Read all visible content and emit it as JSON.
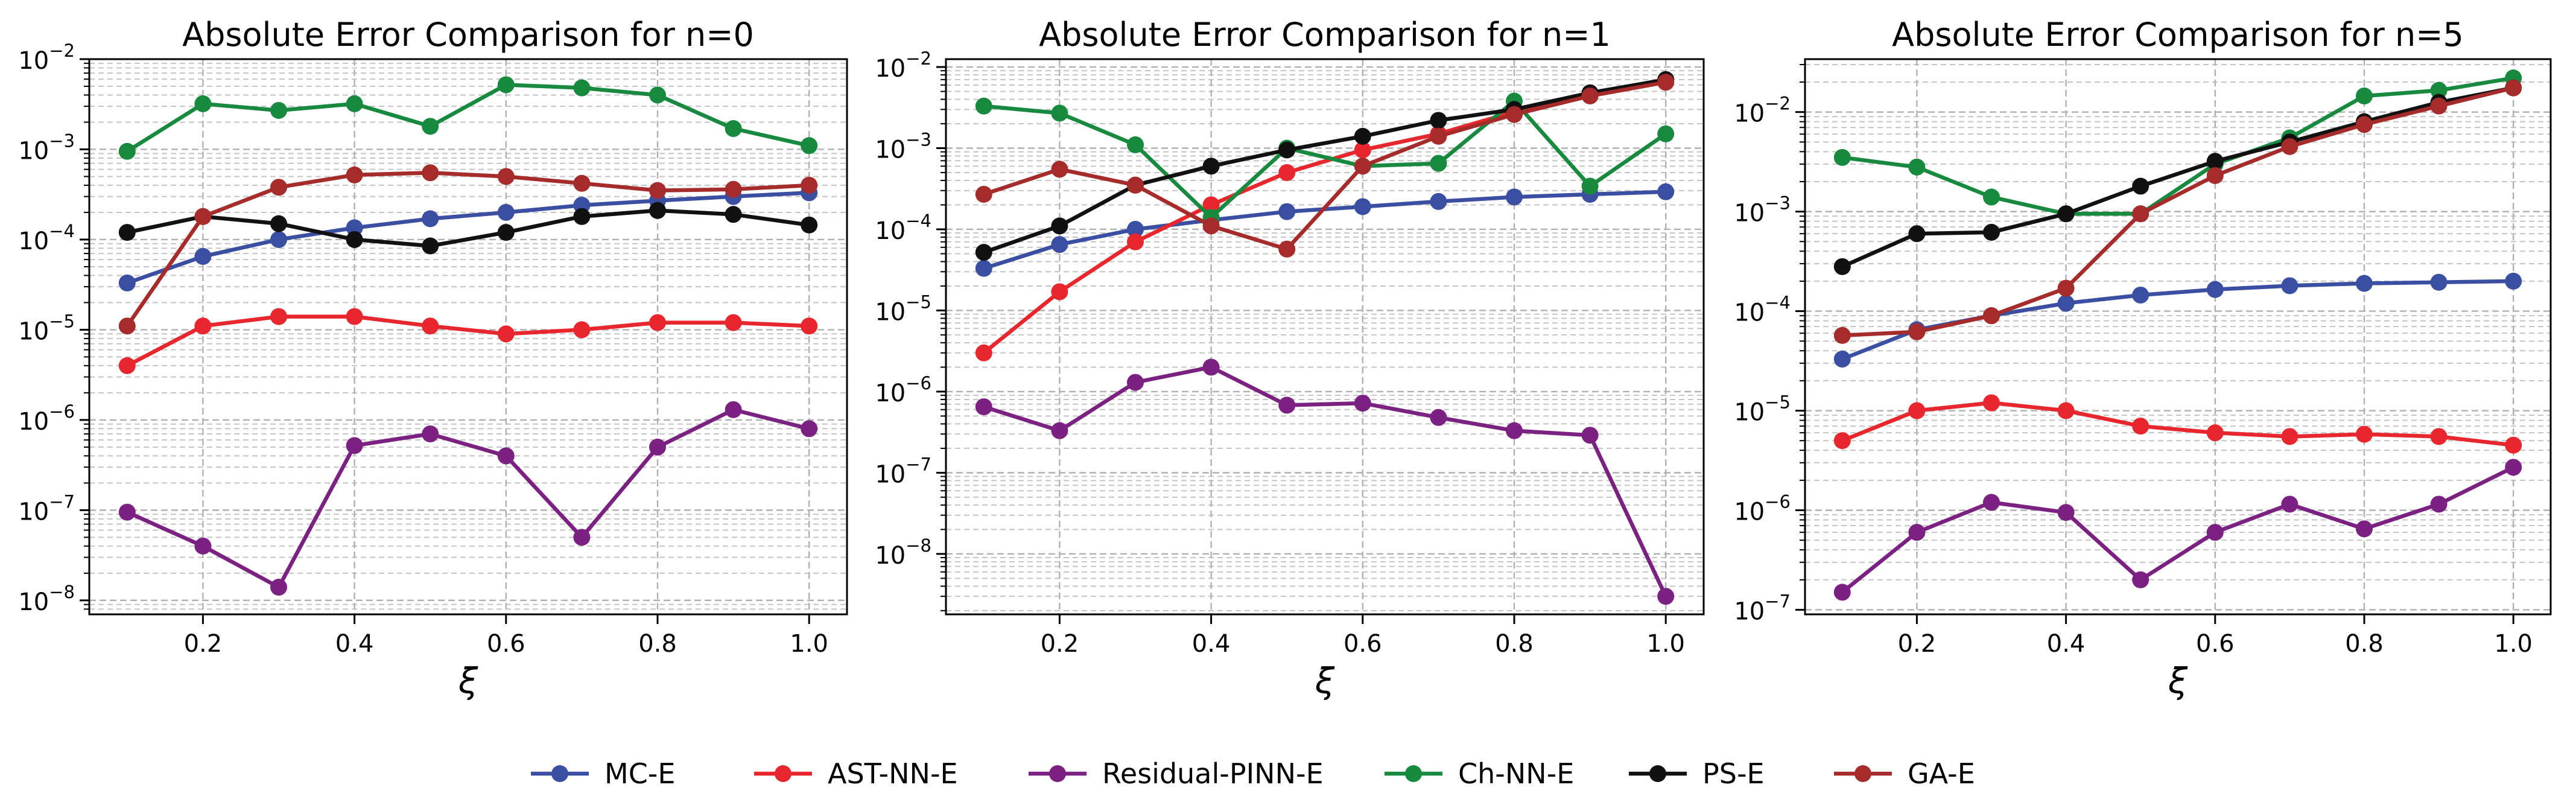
{
  "figure": {
    "legend_position": "bottom-center",
    "grid": true
  },
  "series_styles": [
    {
      "name": "MC-E",
      "color": "#3a4ea2"
    },
    {
      "name": "AST-NN-E",
      "color": "#e8262e"
    },
    {
      "name": "Residual-PINN-E",
      "color": "#7b2181"
    },
    {
      "name": "Ch-NN-E",
      "color": "#178a3f"
    },
    {
      "name": "PS-E",
      "color": "#111111"
    },
    {
      "name": "GA-E",
      "color": "#a62b2b"
    }
  ],
  "chart_data": [
    {
      "type": "line",
      "title": "Absolute Error Comparison for n=0",
      "xlabel": "ξ",
      "ylabel": "",
      "yscale": "log",
      "x": [
        0.1,
        0.2,
        0.3,
        0.4,
        0.5,
        0.6,
        0.7,
        0.8,
        0.9,
        1.0
      ],
      "xlim": [
        0.05,
        1.05
      ],
      "ylim": [
        7e-09,
        0.01
      ],
      "xticks": [
        "0.2",
        "0.4",
        "0.6",
        "0.8",
        "1.0"
      ],
      "yticks": [
        "10",
        "10",
        "10",
        "10",
        "10",
        "10",
        "10"
      ],
      "ytick_exponents": [
        "-8",
        "-7",
        "-6",
        "-5",
        "-4",
        "-3",
        "-2"
      ],
      "series": [
        {
          "name": "MC-E",
          "values": [
            3.3e-05,
            6.5e-05,
            0.0001,
            0.000135,
            0.00017,
            0.0002,
            0.00024,
            0.00027,
            0.0003,
            0.00033
          ]
        },
        {
          "name": "AST-NN-E",
          "values": [
            4e-06,
            1.1e-05,
            1.4e-05,
            1.4e-05,
            1.1e-05,
            9e-06,
            1e-05,
            1.2e-05,
            1.2e-05,
            1.1e-05
          ]
        },
        {
          "name": "Residual-PINN-E",
          "values": [
            9.5e-08,
            4e-08,
            1.4e-08,
            5.2e-07,
            7e-07,
            4e-07,
            5e-08,
            5e-07,
            1.3e-06,
            8e-07
          ]
        },
        {
          "name": "Ch-NN-E",
          "values": [
            0.00095,
            0.0032,
            0.0027,
            0.0032,
            0.0018,
            0.0052,
            0.0048,
            0.004,
            0.0017,
            0.0011
          ]
        },
        {
          "name": "PS-E",
          "values": [
            0.00012,
            0.00018,
            0.00015,
            0.0001,
            8.5e-05,
            0.00012,
            0.00018,
            0.00021,
            0.00019,
            0.000145
          ]
        },
        {
          "name": "GA-E",
          "values": [
            1.1e-05,
            0.00018,
            0.00038,
            0.00052,
            0.00055,
            0.0005,
            0.00042,
            0.00035,
            0.00036,
            0.0004
          ]
        }
      ]
    },
    {
      "type": "line",
      "title": "Absolute Error Comparison for n=1",
      "xlabel": "ξ",
      "ylabel": "",
      "yscale": "log",
      "x": [
        0.1,
        0.2,
        0.3,
        0.4,
        0.5,
        0.6,
        0.7,
        0.8,
        0.9,
        1.0
      ],
      "xlim": [
        0.05,
        1.05
      ],
      "ylim": [
        1.8e-09,
        0.0125
      ],
      "xticks": [
        "0.2",
        "0.4",
        "0.6",
        "0.8",
        "1.0"
      ],
      "yticks": [
        "10",
        "10",
        "10",
        "10",
        "10",
        "10",
        "10"
      ],
      "ytick_exponents": [
        "-8",
        "-7",
        "-6",
        "-5",
        "-4",
        "-3",
        "-2"
      ],
      "series": [
        {
          "name": "MC-E",
          "values": [
            3.3e-05,
            6.5e-05,
            0.0001,
            0.00013,
            0.000165,
            0.00019,
            0.00022,
            0.00025,
            0.00027,
            0.00029
          ]
        },
        {
          "name": "AST-NN-E",
          "values": [
            3e-06,
            1.7e-05,
            7e-05,
            0.0002,
            0.0005,
            0.00095,
            0.0015,
            0.0028,
            0.0045,
            0.0065
          ]
        },
        {
          "name": "Residual-PINN-E",
          "values": [
            6.5e-07,
            3.3e-07,
            1.3e-06,
            2e-06,
            6.8e-07,
            7.2e-07,
            4.8e-07,
            3.3e-07,
            2.9e-07,
            3e-09
          ]
        },
        {
          "name": "Ch-NN-E",
          "values": [
            0.0033,
            0.0027,
            0.0011,
            0.00014,
            0.001,
            0.0006,
            0.00065,
            0.0038,
            0.00034,
            0.0015
          ]
        },
        {
          "name": "PS-E",
          "values": [
            5.2e-05,
            0.00011,
            0.00035,
            0.0006,
            0.00095,
            0.0014,
            0.0022,
            0.003,
            0.0048,
            0.007
          ]
        },
        {
          "name": "GA-E",
          "values": [
            0.00027,
            0.00055,
            0.00035,
            0.00011,
            5.7e-05,
            0.0006,
            0.0014,
            0.0026,
            0.0044,
            0.0065
          ]
        }
      ]
    },
    {
      "type": "line",
      "title": "Absolute Error Comparison for n=5",
      "xlabel": "ξ",
      "ylabel": "",
      "yscale": "log",
      "x": [
        0.1,
        0.2,
        0.3,
        0.4,
        0.5,
        0.6,
        0.7,
        0.8,
        0.9,
        1.0
      ],
      "xlim": [
        0.05,
        1.05
      ],
      "ylim": [
        9e-08,
        0.034
      ],
      "xticks": [
        "0.2",
        "0.4",
        "0.6",
        "0.8",
        "1.0"
      ],
      "yticks": [
        "10",
        "10",
        "10",
        "10",
        "10",
        "10"
      ],
      "ytick_exponents": [
        "-7",
        "-6",
        "-5",
        "-4",
        "-3",
        "-2"
      ],
      "series": [
        {
          "name": "MC-E",
          "values": [
            3.3e-05,
            6.5e-05,
            9e-05,
            0.00012,
            0.000145,
            0.000165,
            0.00018,
            0.00019,
            0.000195,
            0.0002
          ]
        },
        {
          "name": "AST-NN-E",
          "values": [
            5e-06,
            1e-05,
            1.2e-05,
            1e-05,
            7e-06,
            6e-06,
            5.5e-06,
            5.8e-06,
            5.5e-06,
            4.5e-06
          ]
        },
        {
          "name": "Residual-PINN-E",
          "values": [
            1.5e-07,
            6e-07,
            1.2e-06,
            9.5e-07,
            2e-07,
            6e-07,
            1.15e-06,
            6.5e-07,
            1.15e-06,
            2.7e-06
          ]
        },
        {
          "name": "Ch-NN-E",
          "values": [
            0.0035,
            0.0028,
            0.0014,
            0.00095,
            0.00095,
            0.003,
            0.0055,
            0.0145,
            0.0165,
            0.022
          ]
        },
        {
          "name": "PS-E",
          "values": [
            0.00028,
            0.0006,
            0.00062,
            0.00095,
            0.0018,
            0.0032,
            0.005,
            0.008,
            0.0125,
            0.0175
          ]
        },
        {
          "name": "GA-E",
          "values": [
            5.7e-05,
            6.2e-05,
            9e-05,
            0.00017,
            0.00095,
            0.0023,
            0.0045,
            0.0075,
            0.0115,
            0.0175
          ]
        }
      ]
    }
  ]
}
